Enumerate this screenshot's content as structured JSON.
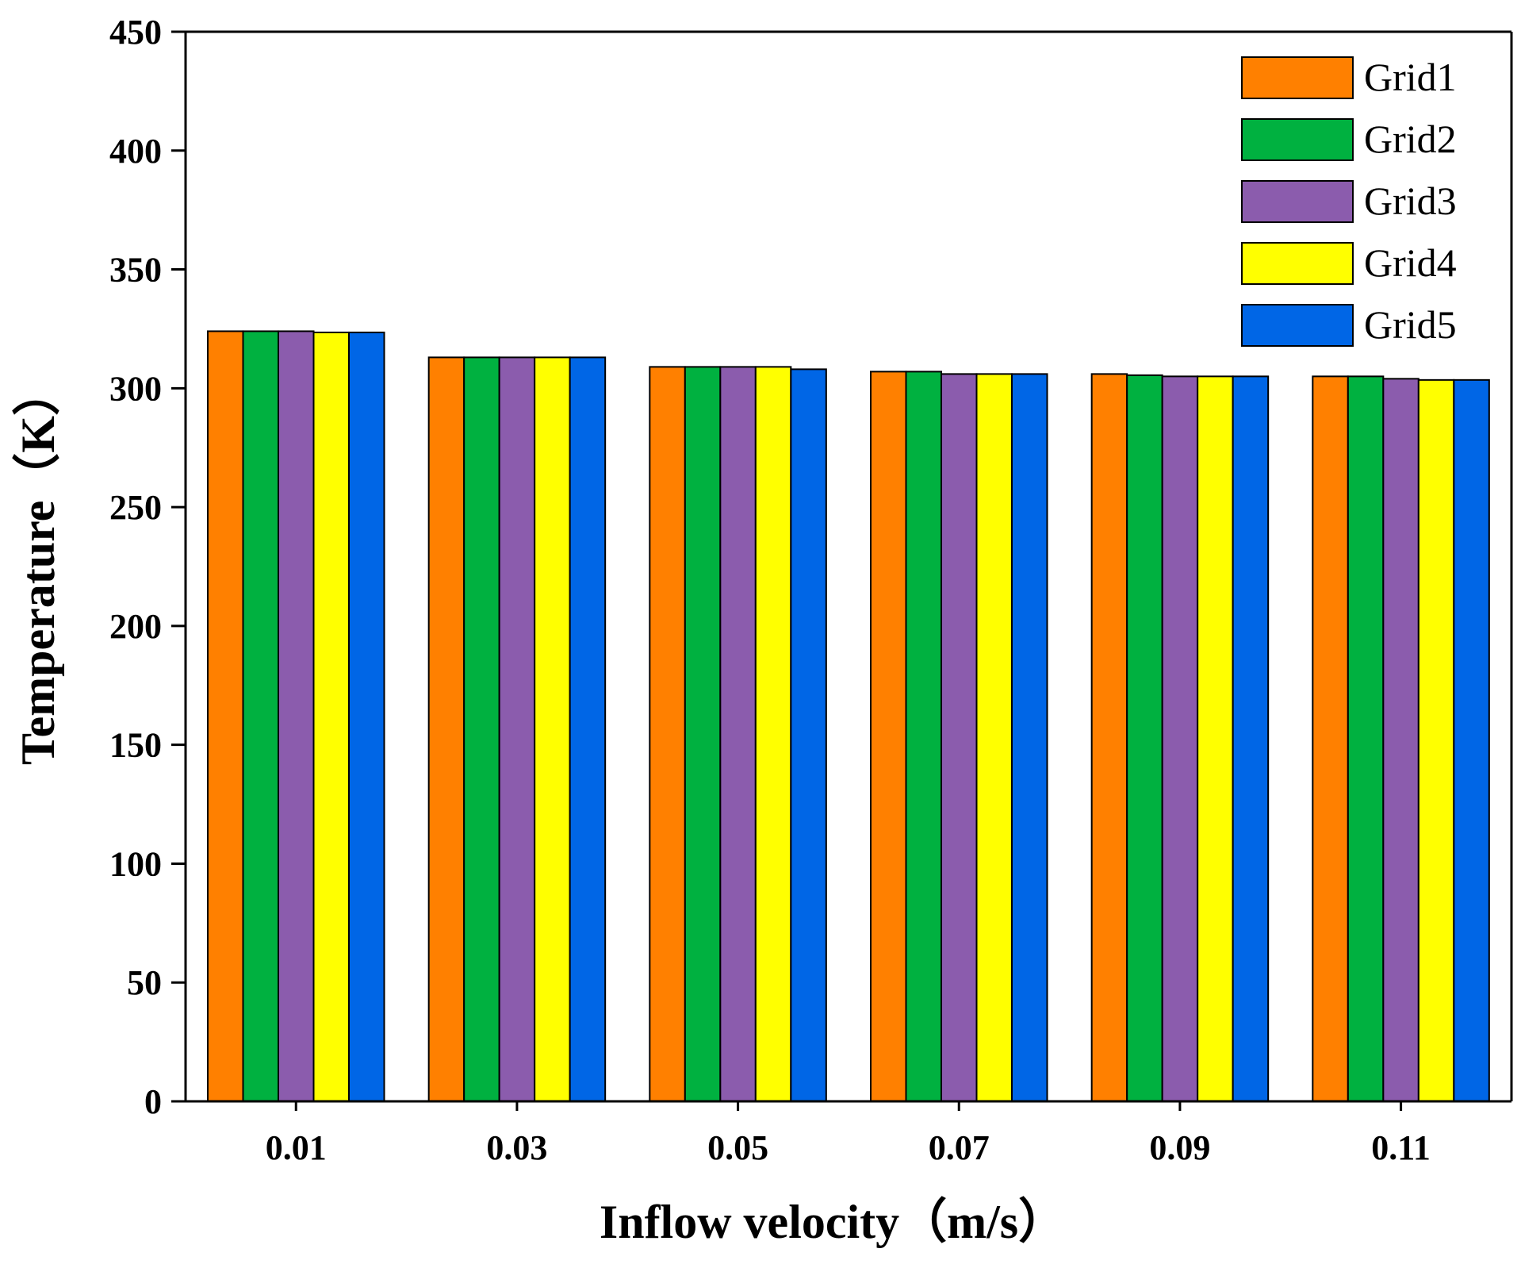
{
  "chart_data": {
    "type": "bar",
    "title": "",
    "xlabel": "Inflow velocity（m/s）",
    "ylabel": "Temperature（K）",
    "ylim": [
      0,
      450
    ],
    "yticks": [
      "0",
      "50",
      "100",
      "150",
      "200",
      "250",
      "300",
      "350",
      "400",
      "450"
    ],
    "categories": [
      "0.01",
      "0.03",
      "0.05",
      "0.07",
      "0.09",
      "0.11"
    ],
    "legend_position": "top-right",
    "series": [
      {
        "name": "Grid1",
        "color": "#FF8000",
        "values": [
          324,
          313,
          309,
          307,
          306,
          305
        ]
      },
      {
        "name": "Grid2",
        "color": "#00B140",
        "values": [
          324,
          313,
          309,
          307,
          305.5,
          305
        ]
      },
      {
        "name": "Grid3",
        "color": "#8B5CAD",
        "values": [
          324,
          313,
          309,
          306,
          305,
          304
        ]
      },
      {
        "name": "Grid4",
        "color": "#FFFF00",
        "values": [
          323.5,
          313,
          309,
          306,
          305,
          303.5
        ]
      },
      {
        "name": "Grid5",
        "color": "#0066E6",
        "values": [
          323.5,
          313,
          308,
          306,
          305,
          303.5
        ]
      }
    ]
  }
}
